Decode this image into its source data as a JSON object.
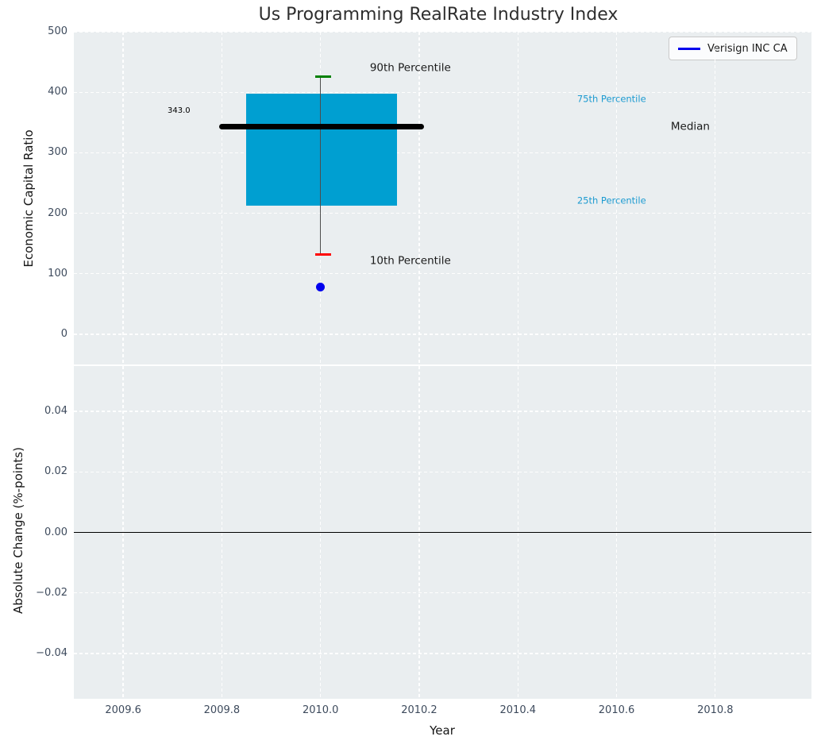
{
  "chart_data": {
    "type": "box-whisker",
    "title": "Us Programming RealRate Industry Index",
    "xlabel": "Year",
    "xlim": [
      2009.5,
      2010.995
    ],
    "x_ticks": {
      "values": [
        2009.6,
        2009.8,
        2010.0,
        2010.2,
        2010.4,
        2010.6,
        2010.8
      ],
      "labels": [
        "2009.6",
        "2009.8",
        "2010.0",
        "2010.2",
        "2010.4",
        "2010.6",
        "2010.8"
      ]
    },
    "panels": [
      {
        "ylabel": "Economic Capital Ratio",
        "ylim": [
          -50,
          500
        ],
        "y_ticks": {
          "values": [
            0,
            100,
            200,
            300,
            400,
            500
          ],
          "labels": [
            "0",
            "100",
            "200",
            "300",
            "400",
            "500"
          ]
        },
        "boxplot": {
          "center_year": 2010.0,
          "box_x_range": [
            2009.85,
            2010.155
          ],
          "median_line_x_range": [
            2009.795,
            2010.21
          ],
          "cap_x_range": [
            2009.989,
            2010.021
          ],
          "p10": 132,
          "p25": 212,
          "median": 343,
          "p75": 398,
          "p90": 426,
          "median_value_label": "343.0"
        },
        "points": [
          {
            "series": "Verisign INC CA",
            "year": 2010.0,
            "value": 78
          }
        ],
        "annotations": [
          {
            "text": "90th Percentile",
            "x": 2010.1,
            "y": 440,
            "size": 13.5,
            "color": "#1a1a1a",
            "anchor": "left"
          },
          {
            "text": "75th Percentile",
            "x": 2010.52,
            "y": 388,
            "size": 11.5,
            "color": "#1d9bd1",
            "anchor": "left"
          },
          {
            "text": "Median",
            "x": 2010.71,
            "y": 343,
            "size": 13.5,
            "color": "#1a1a1a",
            "anchor": "left"
          },
          {
            "text": "25th Percentile",
            "x": 2010.52,
            "y": 220,
            "size": 11.5,
            "color": "#1d9bd1",
            "anchor": "left"
          },
          {
            "text": "10th Percentile",
            "x": 2010.1,
            "y": 120,
            "size": 13.5,
            "color": "#1a1a1a",
            "anchor": "left"
          },
          {
            "text": "343.0",
            "x": 2009.713,
            "y": 369,
            "size": 10,
            "color": "#000000",
            "anchor": "center"
          }
        ]
      },
      {
        "ylabel": "Absolute Change (%-points)",
        "ylim": [
          -0.055,
          0.055
        ],
        "y_ticks": {
          "values": [
            -0.04,
            -0.02,
            0,
            0.02,
            0.04
          ],
          "labels": [
            "−0.04",
            "−0.02",
            "0.00",
            "0.02",
            "0.04"
          ]
        },
        "zero_line": true
      }
    ],
    "legend": {
      "position": "upper right",
      "entries": [
        {
          "label": "Verisign INC CA",
          "color": "#0000ee"
        }
      ]
    },
    "colors": {
      "box_fill": "#009fd1",
      "median_line": "#000000",
      "p90_cap": "#008000",
      "p10_cap": "#ff0000",
      "whisker": "#4d4d4d",
      "marker": "#0000ee",
      "axes_bg": "#eaeef0",
      "grid": "#ffffff",
      "tick_label": "#3d4a5c",
      "zero_line": "#000000"
    }
  }
}
